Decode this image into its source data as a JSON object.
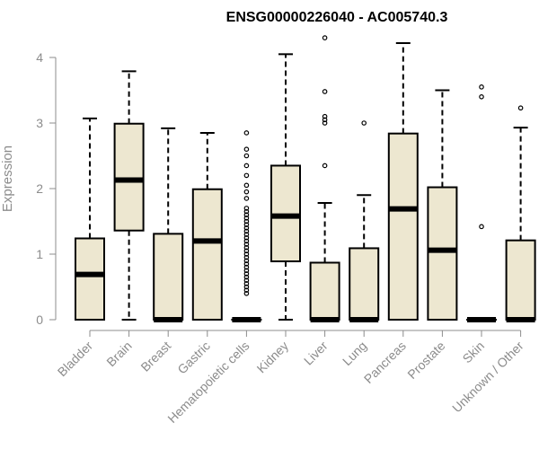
{
  "chart_data": {
    "type": "box",
    "title": "ENSG00000226040 - AC005740.3",
    "xlabel": "",
    "ylabel": "Expression",
    "ylim": [
      0,
      4.3
    ],
    "yticks": [
      "0",
      "1",
      "2",
      "3",
      "4"
    ],
    "grid": false,
    "colors": {
      "box_fill": "#ede7d0",
      "stroke": "#000000",
      "axis": "#8c8c8c"
    },
    "categories": [
      "Bladder",
      "Brain",
      "Breast",
      "Gastric",
      "Hematopoietic cells",
      "Kidney",
      "Liver",
      "Lung",
      "Pancreas",
      "Prostate",
      "Skin",
      "Unknown / Other"
    ],
    "boxes": [
      {
        "min": 0,
        "q1": 0,
        "median": 0.69,
        "q3": 1.24,
        "max": 3.07,
        "outliers": []
      },
      {
        "min": 0,
        "q1": 1.36,
        "median": 2.13,
        "q3": 2.99,
        "max": 3.79,
        "outliers": []
      },
      {
        "min": 0,
        "q1": 0,
        "median": 0,
        "q3": 1.31,
        "max": 2.92,
        "outliers": []
      },
      {
        "min": 0,
        "q1": 0,
        "median": 1.2,
        "q3": 1.99,
        "max": 2.85,
        "outliers": []
      },
      {
        "min": 0,
        "q1": 0,
        "median": 0,
        "q3": 0,
        "max": 0,
        "outliers": [
          2.85,
          2.6,
          2.5,
          2.35,
          2.2,
          2.05,
          1.95,
          1.85,
          1.7,
          1.65,
          1.6,
          1.55,
          1.5,
          1.45,
          1.4,
          1.35,
          1.3,
          1.25,
          1.2,
          1.15,
          1.1,
          1.05,
          1.0,
          0.95,
          0.9,
          0.85,
          0.8,
          0.75,
          0.7,
          0.65,
          0.6,
          0.55,
          0.5,
          0.45,
          0.4
        ]
      },
      {
        "min": 0,
        "q1": 0.89,
        "median": 1.58,
        "q3": 2.35,
        "max": 4.05,
        "outliers": []
      },
      {
        "min": 0,
        "q1": 0,
        "median": 0,
        "q3": 0.87,
        "max": 1.78,
        "outliers": [
          4.3,
          3.48,
          3.1,
          3.05,
          3.0,
          2.35
        ]
      },
      {
        "min": 0,
        "q1": 0,
        "median": 0,
        "q3": 1.09,
        "max": 1.9,
        "outliers": [
          3.0
        ]
      },
      {
        "min": 0,
        "q1": 0,
        "median": 1.69,
        "q3": 2.84,
        "max": 4.22,
        "outliers": []
      },
      {
        "min": 0,
        "q1": 0,
        "median": 1.06,
        "q3": 2.02,
        "max": 3.5,
        "outliers": []
      },
      {
        "min": 0,
        "q1": 0,
        "median": 0,
        "q3": 0,
        "max": 0,
        "outliers": [
          3.55,
          3.4,
          1.42
        ]
      },
      {
        "min": 0,
        "q1": 0,
        "median": 0,
        "q3": 1.21,
        "max": 2.93,
        "outliers": [
          3.23
        ]
      }
    ]
  }
}
